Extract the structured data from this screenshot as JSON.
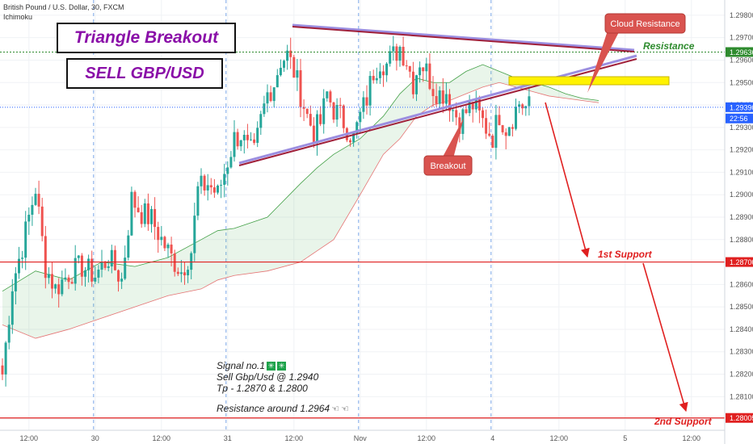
{
  "header": {
    "symbol_line": "British Pound / U.S. Dollar, 30, FXCM",
    "indicator": "Ichimoku"
  },
  "titles": {
    "line1": "Triangle Breakout",
    "line2": "SELL GBP/USD"
  },
  "signal": {
    "line1": "Signal no.1",
    "line2": "Sell Gbp/Usd @ 1.2940",
    "line3": "Tp - 1.2870 & 1.2800",
    "line4": "Resistance around 1.2964",
    "check_icon": "✳",
    "finger_icon": "☜"
  },
  "annotations": {
    "cloud_resistance": "Cloud Resistance",
    "breakout": "Breakout",
    "resistance": "Resistance",
    "support1": "1st Support",
    "support2": "2nd Support"
  },
  "colors": {
    "up": "#26a69a",
    "down": "#ef5350",
    "title": "#8a0fa8",
    "red_line": "#e02020",
    "resistance_green": "#2e8b2e",
    "price_blue": "#2962ff",
    "trend_dark": "#a0203a",
    "trend_light": "#9b8ee0",
    "callout": "#d9534f",
    "highlight": "#fff200"
  },
  "chart_data": {
    "type": "candlestick",
    "symbol": "GBPUSD",
    "timeframe": "30",
    "price_axis": {
      "range": [
        1.2795,
        1.2985
      ],
      "ticks": [
        "1.29800",
        "1.29700",
        "1.29600",
        "1.29500",
        "1.29400",
        "1.29300",
        "1.29200",
        "1.29100",
        "1.29000",
        "1.28900",
        "1.28800",
        "1.28700",
        "1.28600",
        "1.28500",
        "1.28400",
        "1.28300",
        "1.28200",
        "1.28100",
        "1.28000"
      ],
      "tick_values": [
        1.298,
        1.297,
        1.296,
        1.295,
        1.294,
        1.293,
        1.292,
        1.291,
        1.29,
        1.289,
        1.288,
        1.287,
        1.286,
        1.285,
        1.284,
        1.283,
        1.282,
        1.281,
        1.28
      ]
    },
    "price_labels": [
      {
        "text": "1.29636",
        "value": 1.29636,
        "color": "#2e8b2e"
      },
      {
        "text": "1.29390",
        "value": 1.2939,
        "color": "#2962ff"
      },
      {
        "text": "22:56",
        "value": 1.2934,
        "color": "#2962ff"
      },
      {
        "text": "1.28700",
        "value": 1.287,
        "color": "#e02020"
      },
      {
        "text": "1.28005",
        "value": 1.28005,
        "color": "#e02020"
      }
    ],
    "time_axis": {
      "labels": [
        "12:00",
        "30",
        "12:00",
        "31",
        "12:00",
        "Nov",
        "12:00",
        "4",
        "12:00",
        "5",
        "12:00"
      ],
      "index": [
        8,
        28,
        48,
        68,
        88,
        108,
        128,
        148,
        168,
        188,
        208
      ]
    },
    "bars": 160,
    "close_anchors": [
      [
        0,
        1.282
      ],
      [
        3,
        1.286
      ],
      [
        6,
        1.2877
      ],
      [
        10,
        1.2903
      ],
      [
        13,
        1.2868
      ],
      [
        16,
        1.2858
      ],
      [
        20,
        1.2865
      ],
      [
        24,
        1.2868
      ],
      [
        28,
        1.2864
      ],
      [
        32,
        1.2872
      ],
      [
        36,
        1.2862
      ],
      [
        39,
        1.2898
      ],
      [
        42,
        1.2892
      ],
      [
        45,
        1.2889
      ],
      [
        48,
        1.288
      ],
      [
        51,
        1.2872
      ],
      [
        54,
        1.2866
      ],
      [
        57,
        1.2875
      ],
      [
        59,
        1.2902
      ],
      [
        62,
        1.2905
      ],
      [
        65,
        1.29
      ],
      [
        68,
        1.2915
      ],
      [
        70,
        1.2925
      ],
      [
        72,
        1.2927
      ],
      [
        74,
        1.292
      ],
      [
        76,
        1.2918
      ],
      [
        78,
        1.2933
      ],
      [
        80,
        1.2945
      ],
      [
        82,
        1.295
      ],
      [
        84,
        1.296
      ],
      [
        86,
        1.2962
      ],
      [
        88,
        1.2955
      ],
      [
        90,
        1.2945
      ],
      [
        92,
        1.2935
      ],
      [
        94,
        1.2928
      ],
      [
        96,
        1.2932
      ],
      [
        98,
        1.2945
      ],
      [
        100,
        1.2938
      ],
      [
        102,
        1.2935
      ],
      [
        104,
        1.293
      ],
      [
        106,
        1.2925
      ],
      [
        108,
        1.2935
      ],
      [
        110,
        1.2943
      ],
      [
        112,
        1.2955
      ],
      [
        114,
        1.296
      ],
      [
        116,
        1.2958
      ],
      [
        118,
        1.2962
      ],
      [
        120,
        1.2966
      ],
      [
        122,
        1.296
      ],
      [
        124,
        1.295
      ],
      [
        126,
        1.296
      ],
      [
        128,
        1.2955
      ],
      [
        130,
        1.2948
      ],
      [
        132,
        1.2945
      ],
      [
        134,
        1.2946
      ],
      [
        136,
        1.2938
      ],
      [
        138,
        1.2933
      ],
      [
        140,
        1.2937
      ],
      [
        142,
        1.294
      ],
      [
        144,
        1.2935
      ],
      [
        146,
        1.293
      ],
      [
        148,
        1.2926
      ],
      [
        150,
        1.2936
      ],
      [
        152,
        1.293
      ],
      [
        154,
        1.2935
      ],
      [
        156,
        1.2941
      ],
      [
        158,
        1.2939
      ],
      [
        159,
        1.2939
      ]
    ],
    "cloud": {
      "points_x": [
        0,
        10,
        20,
        30,
        40,
        50,
        60,
        65,
        70,
        80,
        90,
        95,
        100,
        108,
        115,
        120,
        125,
        130,
        135,
        140,
        145,
        150,
        155,
        160,
        165,
        170,
        175,
        180
      ],
      "span_a": [
        1.2857,
        1.2866,
        1.2862,
        1.287,
        1.2868,
        1.2872,
        1.288,
        1.2884,
        1.2885,
        1.289,
        1.2905,
        1.2912,
        1.2918,
        1.2925,
        1.2935,
        1.2945,
        1.2952,
        1.295,
        1.295,
        1.2955,
        1.2958,
        1.2955,
        1.2952,
        1.295,
        1.2948,
        1.2945,
        1.2943,
        1.2942
      ],
      "span_b": [
        1.2842,
        1.2836,
        1.284,
        1.2845,
        1.285,
        1.2855,
        1.2858,
        1.2862,
        1.2864,
        1.2866,
        1.287,
        1.2875,
        1.288,
        1.29,
        1.2918,
        1.2925,
        1.2935,
        1.294,
        1.2942,
        1.2945,
        1.2948,
        1.295,
        1.2948,
        1.2946,
        1.2944,
        1.2943,
        1.2942,
        1.2941
      ]
    },
    "lines": {
      "resistance": 1.29636,
      "last_price": 1.2939,
      "support1": 1.287,
      "support2": 1.28005
    }
  }
}
